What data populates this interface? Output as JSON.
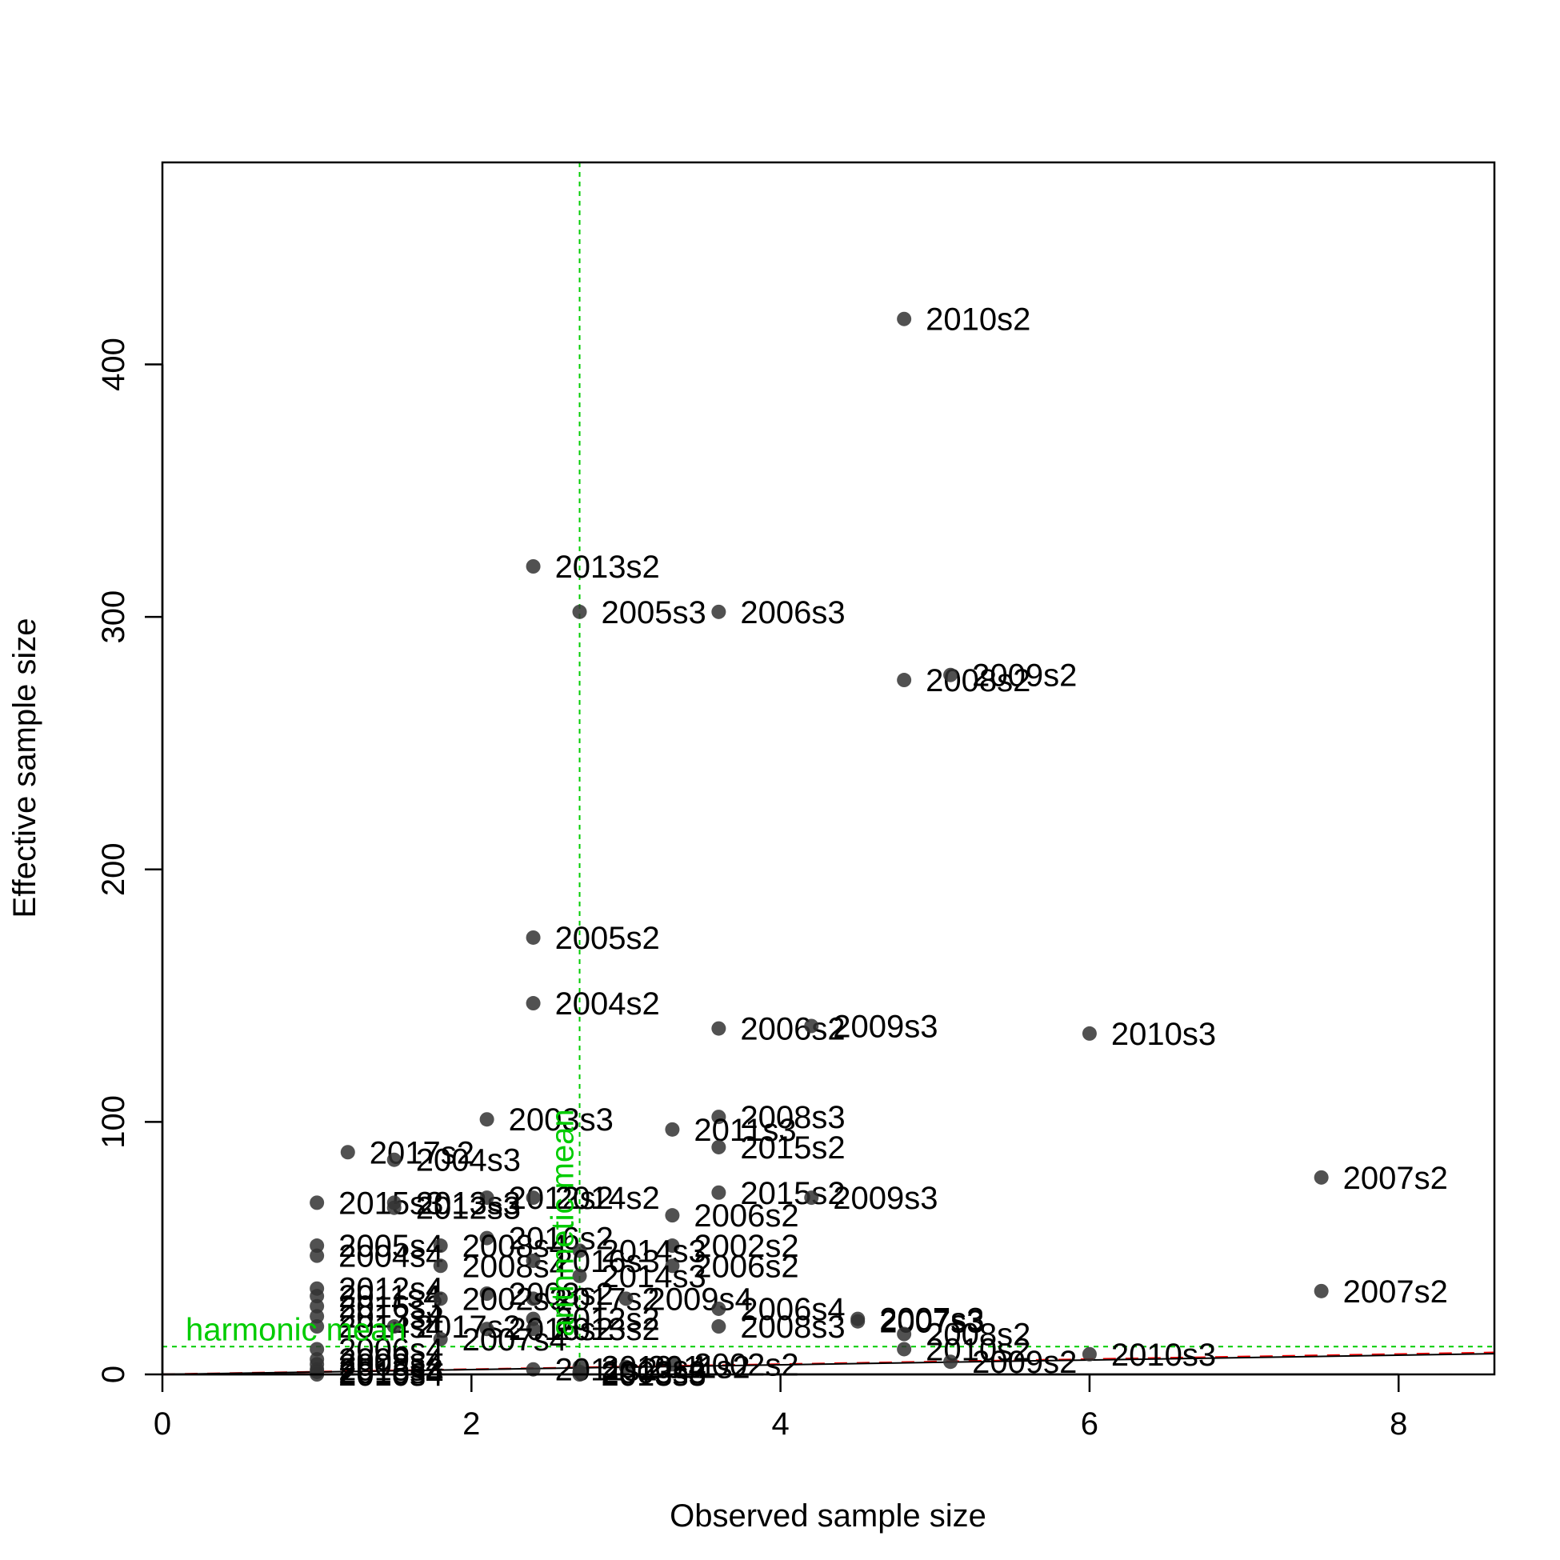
{
  "chart_data": {
    "type": "scatter",
    "xlabel": "Observed sample size",
    "ylabel": "Effective sample size",
    "xlim": [
      0,
      8.62
    ],
    "ylim": [
      0,
      480
    ],
    "xticks": [
      "0",
      "2",
      "4",
      "6",
      "8"
    ],
    "yticks": [
      "0",
      "100",
      "200",
      "300",
      "400"
    ],
    "point_color": "#333333",
    "reference_color": "#00cc00",
    "one_to_one_color": "#ff0000",
    "fit_color": "#000000",
    "harmonic_mean_label": "harmonic mean",
    "arithmetic_mean_label": "arithmetic mean",
    "harmonic_mean_y": 11,
    "arithmetic_mean_x": 2.7,
    "fit_slope": 0.95,
    "points": [
      {
        "x": 4.8,
        "y": 418,
        "label": "2010s2"
      },
      {
        "x": 2.4,
        "y": 320,
        "label": "2013s2"
      },
      {
        "x": 2.7,
        "y": 302,
        "label": "2005s3"
      },
      {
        "x": 3.6,
        "y": 302,
        "label": "2006s3"
      },
      {
        "x": 4.8,
        "y": 275,
        "label": "2008s2"
      },
      {
        "x": 5.1,
        "y": 277,
        "label": "2009s2"
      },
      {
        "x": 2.4,
        "y": 173,
        "label": "2005s2"
      },
      {
        "x": 2.4,
        "y": 147,
        "label": "2004s2"
      },
      {
        "x": 3.6,
        "y": 137,
        "label": "2006s2"
      },
      {
        "x": 4.2,
        "y": 138,
        "label": "2009s3"
      },
      {
        "x": 6.0,
        "y": 135,
        "label": "2010s3"
      },
      {
        "x": 2.1,
        "y": 101,
        "label": "2003s3"
      },
      {
        "x": 3.6,
        "y": 102,
        "label": "2008s3"
      },
      {
        "x": 3.3,
        "y": 97,
        "label": "2011s3"
      },
      {
        "x": 3.6,
        "y": 90,
        "label": "2015s2"
      },
      {
        "x": 1.2,
        "y": 88,
        "label": "2017s2"
      },
      {
        "x": 1.5,
        "y": 85,
        "label": "2004s3"
      },
      {
        "x": 7.5,
        "y": 78,
        "label": "2007s2"
      },
      {
        "x": 3.6,
        "y": 72,
        "label": "2015s2"
      },
      {
        "x": 4.2,
        "y": 70,
        "label": "2009s3"
      },
      {
        "x": 1.0,
        "y": 68,
        "label": "2015s3"
      },
      {
        "x": 1.5,
        "y": 68,
        "label": "2013s3"
      },
      {
        "x": 2.1,
        "y": 70,
        "label": "2012s2"
      },
      {
        "x": 2.4,
        "y": 70,
        "label": "2014s2"
      },
      {
        "x": 1.5,
        "y": 66,
        "label": "2012s3"
      },
      {
        "x": 3.3,
        "y": 63,
        "label": "2006s2"
      },
      {
        "x": 2.1,
        "y": 54,
        "label": "2016s2"
      },
      {
        "x": 1.0,
        "y": 51,
        "label": "2005s4"
      },
      {
        "x": 1.8,
        "y": 51,
        "label": "2008s4"
      },
      {
        "x": 3.3,
        "y": 51,
        "label": "2002s2"
      },
      {
        "x": 2.7,
        "y": 49,
        "label": "2014s3"
      },
      {
        "x": 1.0,
        "y": 47,
        "label": "2004s4"
      },
      {
        "x": 1.8,
        "y": 43,
        "label": "2008s4"
      },
      {
        "x": 2.4,
        "y": 45,
        "label": "2016s3"
      },
      {
        "x": 3.3,
        "y": 43,
        "label": "2006s2"
      },
      {
        "x": 2.7,
        "y": 39,
        "label": "2014s3"
      },
      {
        "x": 7.5,
        "y": 33,
        "label": "2007s2"
      },
      {
        "x": 1.0,
        "y": 34,
        "label": "2012s4"
      },
      {
        "x": 1.0,
        "y": 31,
        "label": "2011s4"
      },
      {
        "x": 2.1,
        "y": 32,
        "label": "2003s2"
      },
      {
        "x": 2.4,
        "y": 30,
        "label": "2017s2"
      },
      {
        "x": 3.0,
        "y": 30,
        "label": "2009s4"
      },
      {
        "x": 1.0,
        "y": 27,
        "label": "2016s3"
      },
      {
        "x": 1.8,
        "y": 30,
        "label": "2002s3"
      },
      {
        "x": 3.6,
        "y": 26,
        "label": "2006s4"
      },
      {
        "x": 1.0,
        "y": 23,
        "label": "2013s4"
      },
      {
        "x": 4.5,
        "y": 22,
        "label": "2007s3"
      },
      {
        "x": 4.5,
        "y": 21,
        "label": "2007s3"
      },
      {
        "x": 2.4,
        "y": 22,
        "label": "2012s2"
      },
      {
        "x": 1.0,
        "y": 19,
        "label": "2014s4"
      },
      {
        "x": 1.5,
        "y": 19,
        "label": "2017s2"
      },
      {
        "x": 3.6,
        "y": 19,
        "label": "2008s3"
      },
      {
        "x": 2.1,
        "y": 18,
        "label": "2016s2"
      },
      {
        "x": 2.4,
        "y": 18,
        "label": "2013s2"
      },
      {
        "x": 4.8,
        "y": 16,
        "label": "2008s2"
      },
      {
        "x": 1.8,
        "y": 14,
        "label": "2007s4"
      },
      {
        "x": 1.0,
        "y": 10,
        "label": "2006s4"
      },
      {
        "x": 4.8,
        "y": 10,
        "label": "2010s2"
      },
      {
        "x": 6.0,
        "y": 8,
        "label": "2010s3"
      },
      {
        "x": 1.0,
        "y": 6,
        "label": "2009s4"
      },
      {
        "x": 5.1,
        "y": 5,
        "label": "2009s2"
      },
      {
        "x": 1.0,
        "y": 4,
        "label": "2003s4"
      },
      {
        "x": 3.3,
        "y": 4,
        "label": "2002s2"
      },
      {
        "x": 2.7,
        "y": 3,
        "label": "2010s4"
      },
      {
        "x": 3.0,
        "y": 3,
        "label": "2011s2"
      },
      {
        "x": 1.0,
        "y": 2,
        "label": "2013s3"
      },
      {
        "x": 2.4,
        "y": 2,
        "label": "2011s2"
      },
      {
        "x": 2.7,
        "y": 1,
        "label": "2003s3"
      },
      {
        "x": 1.0,
        "y": 1,
        "label": "2015s4"
      },
      {
        "x": 1.0,
        "y": 0,
        "label": "2010s4"
      },
      {
        "x": 2.7,
        "y": 0,
        "label": "2013s3"
      }
    ]
  }
}
